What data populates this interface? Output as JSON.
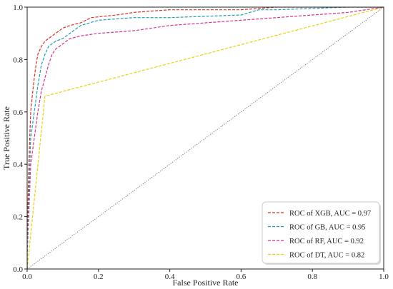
{
  "chart_data": {
    "type": "line",
    "xlabel": "False Positive Rate",
    "ylabel": "True Positive Rate",
    "xlim": [
      0.0,
      1.0
    ],
    "ylim": [
      0.0,
      1.0
    ],
    "xticks": [
      0.0,
      0.2,
      0.4,
      0.6,
      0.8,
      1.0
    ],
    "yticks": [
      0.0,
      0.2,
      0.4,
      0.6,
      0.8,
      1.0
    ],
    "tick_labels_x": [
      "0.0",
      "0.2",
      "0.4",
      "0.6",
      "0.8",
      "1.0"
    ],
    "tick_labels_y": [
      "0.0",
      "0.2",
      "0.4",
      "0.6",
      "0.8",
      "1.0"
    ],
    "grid": false,
    "legend_position": "lower-right",
    "diagonal": {
      "x": [
        0.0,
        1.0
      ],
      "y": [
        0.0,
        1.0
      ],
      "color": "#555555"
    },
    "series": [
      {
        "name": "ROC of XGB, AUC = 0.97",
        "color": "#d9301e",
        "x": [
          0.0,
          0.0,
          0.005,
          0.01,
          0.015,
          0.02,
          0.025,
          0.03,
          0.04,
          0.05,
          0.06,
          0.08,
          0.1,
          0.12,
          0.15,
          0.18,
          0.25,
          0.3,
          0.4,
          0.5,
          0.6,
          0.7,
          0.8,
          0.9,
          1.0
        ],
        "y": [
          0.0,
          0.1,
          0.42,
          0.6,
          0.67,
          0.73,
          0.78,
          0.82,
          0.85,
          0.87,
          0.88,
          0.9,
          0.92,
          0.93,
          0.94,
          0.96,
          0.97,
          0.98,
          0.99,
          0.99,
          0.99,
          1.0,
          1.0,
          1.0,
          1.0
        ]
      },
      {
        "name": "ROC of GB, AUC = 0.95",
        "color": "#1f9bb8",
        "x": [
          0.0,
          0.0,
          0.005,
          0.01,
          0.02,
          0.03,
          0.04,
          0.05,
          0.06,
          0.08,
          0.1,
          0.12,
          0.15,
          0.2,
          0.25,
          0.3,
          0.4,
          0.5,
          0.6,
          0.65,
          0.7,
          0.8,
          0.9,
          1.0
        ],
        "y": [
          0.0,
          0.05,
          0.3,
          0.5,
          0.6,
          0.7,
          0.78,
          0.82,
          0.85,
          0.87,
          0.88,
          0.9,
          0.93,
          0.95,
          0.955,
          0.96,
          0.96,
          0.965,
          0.97,
          0.99,
          0.99,
          0.995,
          1.0,
          1.0
        ]
      },
      {
        "name": "ROC of RF, AUC = 0.92",
        "color": "#d6338a",
        "x": [
          0.0,
          0.0,
          0.01,
          0.02,
          0.03,
          0.04,
          0.05,
          0.06,
          0.07,
          0.08,
          0.1,
          0.12,
          0.15,
          0.2,
          0.3,
          0.4,
          0.5,
          0.6,
          0.7,
          0.8,
          0.9,
          1.0
        ],
        "y": [
          0.0,
          0.05,
          0.4,
          0.5,
          0.6,
          0.68,
          0.73,
          0.78,
          0.82,
          0.84,
          0.86,
          0.88,
          0.89,
          0.9,
          0.91,
          0.93,
          0.94,
          0.95,
          0.96,
          0.97,
          0.98,
          1.0
        ]
      },
      {
        "name": "ROC of DT, AUC = 0.82",
        "color": "#e8d010",
        "x": [
          0.0,
          0.05,
          1.0
        ],
        "y": [
          0.0,
          0.66,
          1.0
        ]
      }
    ]
  }
}
